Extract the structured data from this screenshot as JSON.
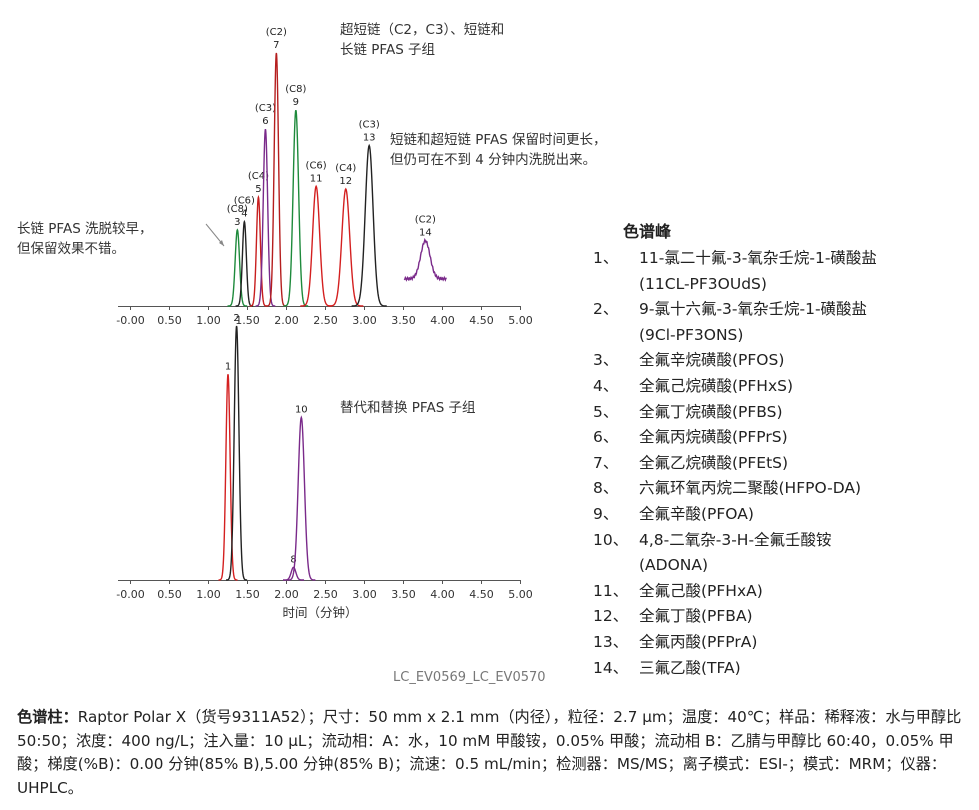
{
  "annotations": {
    "top_title_1": "超短链（C2，C3）、短链和",
    "top_title_2": "长链 PFAS 子组",
    "right_note_1": "短链和超短链 PFAS 保留时间更长，",
    "right_note_2": "但仍可在不到 4 分钟内洗脱出来。",
    "left_note_1": "长链 PFAS 洗脱较早，",
    "left_note_2": "但保留效果不错。",
    "bottom_title": "替代和替换 PFAS 子组"
  },
  "legend": {
    "title": "色谱峰",
    "items": [
      {
        "num": "1、",
        "name": "11-氯二十氟-3-氧杂壬烷-1-磺酸盐",
        "abbr": "(11CL-PF3OUdS)"
      },
      {
        "num": "2、",
        "name": "9-氯十六氟-3-氧杂壬烷-1-磺酸盐",
        "abbr": "(9Cl-PF3ONS)"
      },
      {
        "num": "3、",
        "name": "全氟辛烷磺酸(PFOS)",
        "abbr": ""
      },
      {
        "num": "4、",
        "name": "全氟己烷磺酸(PFHxS)",
        "abbr": ""
      },
      {
        "num": "5、",
        "name": "全氟丁烷磺酸(PFBS)",
        "abbr": ""
      },
      {
        "num": "6、",
        "name": "全氟丙烷磺酸(PFPrS)",
        "abbr": ""
      },
      {
        "num": "7、",
        "name": "全氟乙烷磺酸(PFEtS)",
        "abbr": ""
      },
      {
        "num": "8、",
        "name": "六氟环氧丙烷二聚酸(HFPO-DA)",
        "abbr": ""
      },
      {
        "num": "9、",
        "name": "全氟辛酸(PFOA)",
        "abbr": ""
      },
      {
        "num": "10、",
        "name": "4,8-二氧杂-3-H-全氟壬酸铵",
        "abbr": "(ADONA)"
      },
      {
        "num": "11、",
        "name": "全氟己酸(PFHxA)",
        "abbr": ""
      },
      {
        "num": "12、",
        "name": "全氟丁酸(PFBA)",
        "abbr": ""
      },
      {
        "num": "13、",
        "name": "全氟丙酸(PFPrA)",
        "abbr": ""
      },
      {
        "num": "14、",
        "name": "三氟乙酸(TFA)",
        "abbr": ""
      }
    ]
  },
  "code": "LC_EV0569_LC_EV0570",
  "footer": {
    "label": "色谱柱：",
    "text": "Raptor Polar X（货号9311A52）；尺寸：50 mm x 2.1 mm（内径），粒径：2.7 μm；温度：40℃；样品：稀释液：水与甲醇比 50:50；浓度：400 ng/L；注入量：10 μL；流动相：A：水，10 mM 甲酸铵，0.05% 甲酸；流动相 B：乙腈与甲醇比 60:40，0.05% 甲酸；梯度(%B)：0.00 分钟(85% B),5.00 分钟(85% B)；流速：0.5 mL/min；检测器：MS/MS；离子模式：ESI-；模式：MRM；仪器：UHPLC。"
  },
  "chart_data": [
    {
      "type": "line",
      "title": "超短链（C2，C3）、短链和长链 PFAS 子组",
      "xlabel": "",
      "xlim": [
        -0.1,
        5.0
      ],
      "ticks": [
        "-0.00",
        "0.50",
        "1.00",
        "1.50",
        "2.00",
        "2.50",
        "3.00",
        "3.50",
        "4.00",
        "4.50",
        "5.00"
      ],
      "ylim": [
        0,
        1
      ],
      "peaks": [
        {
          "num": "3",
          "chain": "(C8)",
          "rt": 1.37,
          "height": 0.28,
          "width": 0.028,
          "color": "#1e8a3c"
        },
        {
          "num": "4",
          "chain": "(C6)",
          "rt": 1.46,
          "height": 0.31,
          "width": 0.025,
          "color": "#222222"
        },
        {
          "num": "5",
          "chain": "(C4)",
          "rt": 1.64,
          "height": 0.4,
          "width": 0.025,
          "color": "#c81e1e"
        },
        {
          "num": "6",
          "chain": "(C3)",
          "rt": 1.73,
          "height": 0.65,
          "width": 0.028,
          "color": "#7a2a8a"
        },
        {
          "num": "7",
          "chain": "(C2)",
          "rt": 1.87,
          "height": 0.93,
          "width": 0.028,
          "color": "#b51e1e"
        },
        {
          "num": "9",
          "chain": "(C8)",
          "rt": 2.12,
          "height": 0.72,
          "width": 0.035,
          "color": "#1e8a3c"
        },
        {
          "num": "11",
          "chain": "(C6)",
          "rt": 2.38,
          "height": 0.44,
          "width": 0.045,
          "color": "#d42020"
        },
        {
          "num": "12",
          "chain": "(C4)",
          "rt": 2.76,
          "height": 0.43,
          "width": 0.05,
          "color": "#d42020"
        },
        {
          "num": "13",
          "chain": "(C3)",
          "rt": 3.06,
          "height": 0.59,
          "width": 0.05,
          "color": "#222222"
        },
        {
          "num": "14",
          "chain": "(C2)",
          "rt": 3.78,
          "height": 0.14,
          "width": 0.06,
          "color": "#7a2a8a",
          "baseline": 0.1
        }
      ]
    },
    {
      "type": "line",
      "title": "替代和替换 PFAS 子组",
      "xlabel": "时间（分钟）",
      "xlim": [
        -0.1,
        5.0
      ],
      "ticks": [
        "-0.00",
        "0.50",
        "1.00",
        "1.50",
        "2.00",
        "2.50",
        "3.00",
        "3.50",
        "4.00",
        "4.50",
        "5.00"
      ],
      "ylim": [
        0,
        1
      ],
      "peaks": [
        {
          "num": "1",
          "rt": 1.25,
          "height": 0.81,
          "width": 0.027,
          "color": "#d42020"
        },
        {
          "num": "2",
          "rt": 1.36,
          "height": 1.0,
          "width": 0.03,
          "color": "#222222"
        },
        {
          "num": "8",
          "rt": 2.09,
          "height": 0.05,
          "width": 0.03,
          "color": "#7a2a8a"
        },
        {
          "num": "10",
          "rt": 2.19,
          "height": 0.64,
          "width": 0.04,
          "color": "#7a2a8a"
        }
      ]
    }
  ]
}
